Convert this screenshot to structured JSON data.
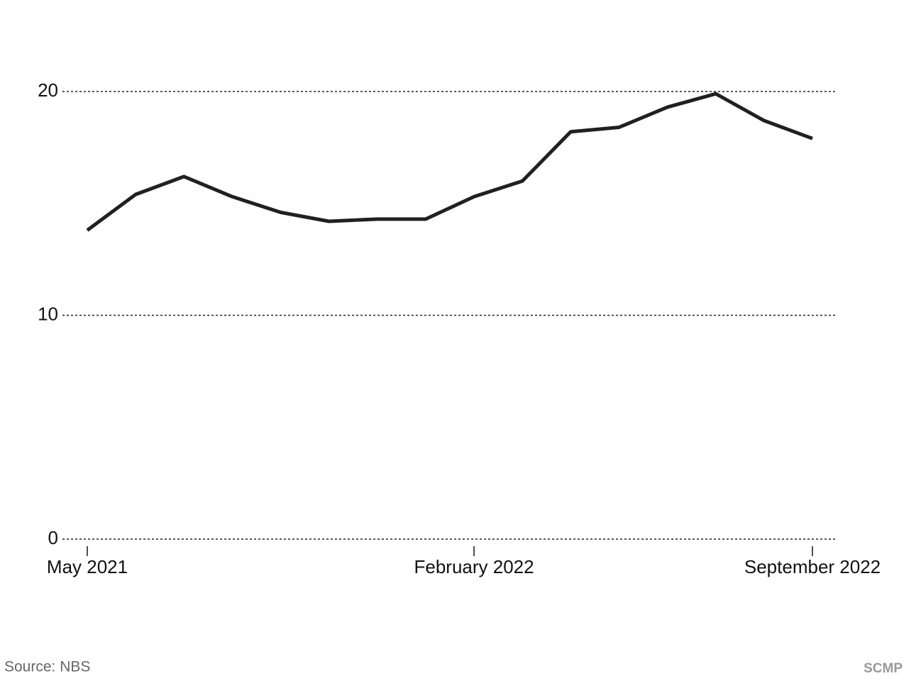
{
  "chart_data": {
    "type": "line",
    "categories": [
      "May 2021",
      null,
      null,
      null,
      null,
      null,
      null,
      null,
      "February 2022",
      null,
      null,
      null,
      null,
      null,
      null,
      "September 2022"
    ],
    "series": [
      {
        "color": "#231f20",
        "values": [
          13.8,
          15.4,
          16.2,
          15.3,
          14.6,
          14.2,
          14.3,
          14.3,
          15.3,
          16.0,
          18.2,
          18.4,
          19.3,
          19.9,
          18.7,
          17.9
        ]
      }
    ],
    "ylim": [
      0,
      20
    ],
    "yticks": [
      0,
      10,
      20
    ],
    "grid": true,
    "source": "Source: NBS",
    "credit": "SCMP"
  }
}
